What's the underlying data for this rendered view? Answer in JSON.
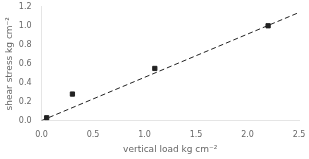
{
  "chart_data": {
    "type": "scatter",
    "xlabel": "vertical load kg cm⁻²",
    "ylabel": "shear stress kg cm⁻²",
    "xlim": [
      0,
      2.5
    ],
    "ylim": [
      0,
      1.2
    ],
    "xticks": [
      {
        "value": 0,
        "label": "0.0"
      },
      0.5,
      {
        "value": 1,
        "label": "1.0"
      },
      1.5,
      {
        "value": 2,
        "label": "2.0"
      },
      2.5
    ],
    "yticks": [
      {
        "value": 0,
        "label": "0.0"
      },
      0.2,
      0.4,
      0.6,
      0.8,
      {
        "value": 1.0,
        "label": "1.0"
      },
      1.2
    ],
    "grid": false,
    "series": [
      {
        "type": "line",
        "x": [
          0.0,
          2.5
        ],
        "values": [
          0.0,
          1.14
        ],
        "color": "#222222",
        "line_style": "dashed"
      },
      {
        "type": "scatter",
        "x": [
          0.05,
          0.3,
          1.1,
          2.2
        ],
        "values": [
          0.03,
          0.28,
          0.55,
          1.0
        ],
        "color": "#222222",
        "marker": "square"
      }
    ]
  }
}
